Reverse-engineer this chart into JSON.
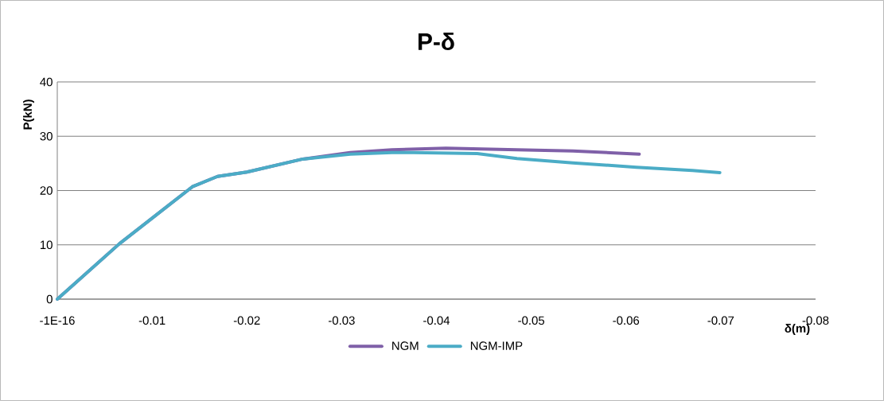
{
  "chart_data": {
    "type": "line",
    "title": "P-δ",
    "xlabel": "δ(m)",
    "ylabel": "P(kN)",
    "xlim": [
      -1e-16,
      -0.08
    ],
    "xticks": [
      {
        "value": -1e-16,
        "label": "-1E-16"
      },
      -0.01,
      -0.02,
      -0.03,
      -0.04,
      -0.05,
      -0.06,
      -0.07,
      -0.08
    ],
    "ylim": [
      0,
      40
    ],
    "yticks": [
      0,
      10,
      20,
      30,
      40
    ],
    "grid": "y",
    "legend": "bottom",
    "marker": "none",
    "line_style": "solid",
    "series": [
      {
        "name": "NGM",
        "color": "#7f60a8",
        "x": [
          -1e-16,
          -0.00655,
          -0.01425,
          -0.0169,
          -0.02,
          -0.0259,
          -0.0309,
          -0.0353,
          -0.041,
          -0.0485,
          -0.0544,
          -0.0614
        ],
        "values": [
          0,
          10.2,
          20.7,
          22.6,
          23.4,
          25.8,
          27.0,
          27.5,
          27.8,
          27.5,
          27.3,
          26.7
        ]
      },
      {
        "name": "NGM-IMP",
        "color": "#4bacc6",
        "x": [
          -1e-16,
          -0.00655,
          -0.01425,
          -0.0169,
          -0.02,
          -0.0259,
          -0.0309,
          -0.0353,
          -0.0376,
          -0.0443,
          -0.0485,
          -0.0544,
          -0.0611,
          -0.067,
          -0.0699
        ],
        "values": [
          0,
          10.2,
          20.7,
          22.6,
          23.4,
          25.8,
          26.7,
          27.0,
          27.0,
          26.8,
          25.9,
          25.1,
          24.3,
          23.7,
          23.3
        ]
      }
    ]
  }
}
